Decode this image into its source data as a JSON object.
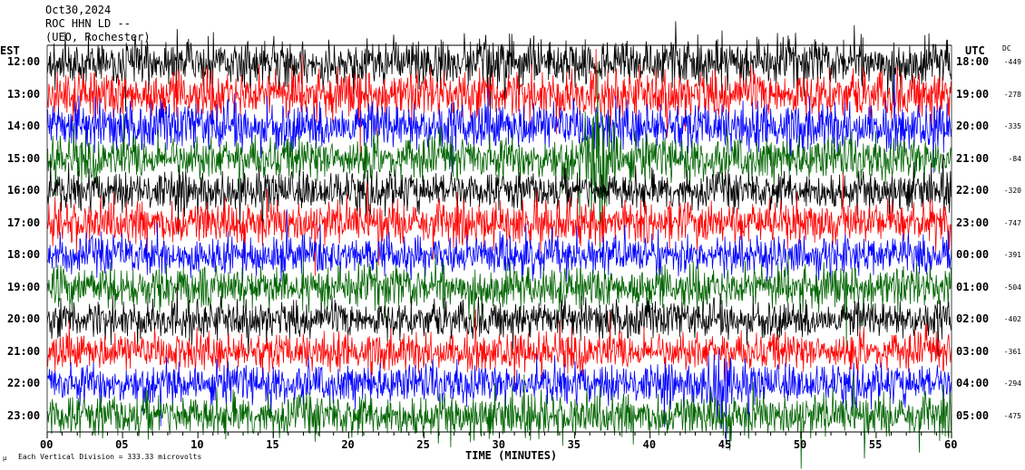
{
  "header": {
    "date": "Oct30,2024",
    "station": "ROC HHN LD --",
    "location": "(UEO, Rochester)"
  },
  "footer": {
    "scale_text": "Each Vertical Division =  333.33 microvolts",
    "mu_symbol": "µ"
  },
  "chart_data": {
    "type": "line",
    "title": "ROC HHN LD -- Oct30,2024 helicorder",
    "xlabel": "TIME (MINUTES)",
    "left_axis_label": "EST",
    "right_axis_label": "UTC",
    "dc_label": "DC",
    "xlim": [
      0,
      60
    ],
    "x_ticks": [
      "00",
      "05",
      "10",
      "15",
      "20",
      "25",
      "30",
      "35",
      "40",
      "45",
      "50",
      "55",
      "60"
    ],
    "colors": [
      "#000000",
      "#ff0000",
      "#0000ff",
      "#006400"
    ],
    "rows": [
      {
        "est": "12:00",
        "utc": "18:00",
        "dc": "-449",
        "amplitude": 1.0
      },
      {
        "est": "13:00",
        "utc": "19:00",
        "dc": "-278",
        "amplitude": 1.0
      },
      {
        "est": "14:00",
        "utc": "20:00",
        "dc": "-335",
        "amplitude": 1.0
      },
      {
        "est": "15:00",
        "utc": "21:00",
        "dc": "-84",
        "amplitude": 0.9
      },
      {
        "est": "16:00",
        "utc": "22:00",
        "dc": "-320",
        "amplitude": 0.8
      },
      {
        "est": "17:00",
        "utc": "23:00",
        "dc": "-747",
        "amplitude": 0.9
      },
      {
        "est": "18:00",
        "utc": "00:00",
        "dc": "-391",
        "amplitude": 0.8
      },
      {
        "est": "19:00",
        "utc": "01:00",
        "dc": "-504",
        "amplitude": 0.9
      },
      {
        "est": "20:00",
        "utc": "02:00",
        "dc": "-402",
        "amplitude": 0.8
      },
      {
        "est": "21:00",
        "utc": "03:00",
        "dc": "-361",
        "amplitude": 0.8
      },
      {
        "est": "22:00",
        "utc": "04:00",
        "dc": "-294",
        "amplitude": 0.8
      },
      {
        "est": "23:00",
        "utc": "05:00",
        "dc": "-475",
        "amplitude": 0.9
      }
    ],
    "events": [
      {
        "row": 3,
        "minute": 36.8,
        "amplitude": 6
      },
      {
        "row": 10,
        "minute": 44.6,
        "amplitude": 3
      }
    ]
  }
}
